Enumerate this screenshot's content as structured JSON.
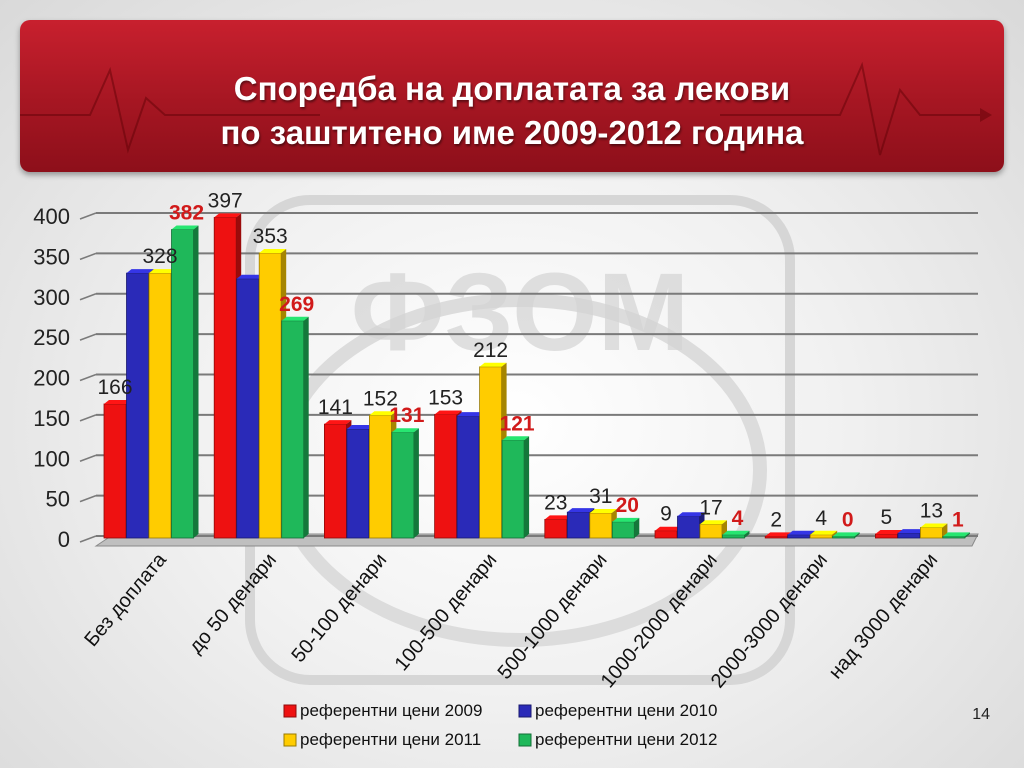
{
  "slide": {
    "title_line1": "Споредба на доплатата за лекови",
    "title_line2": "по заштитено име 2009-2012 година",
    "watermark": "ФЗОМ",
    "page_number": "14"
  },
  "chart_data": {
    "type": "bar",
    "categories": [
      "Без доплата",
      "до 50  денари",
      "50-100  денари",
      "100-500  денари",
      "500-1000  денари",
      "1000-2000  денари",
      "2000-3000 денари",
      "над 3000 денари"
    ],
    "series": [
      {
        "name": "референтни цени 2009",
        "color": "#ee1111",
        "label_color": "#222222",
        "values": [
          166,
          397,
          141,
          153,
          23,
          9,
          2,
          5
        ]
      },
      {
        "name": "референтни цени 2010",
        "color": "#2a2ab8",
        "label_color": "#222222",
        "values": [
          328,
          321,
          135,
          151,
          32,
          27,
          4,
          6
        ]
      },
      {
        "name": "референтни цени 2011",
        "color": "#ffcc00",
        "label_color": "#222222",
        "values": [
          328,
          353,
          152,
          212,
          31,
          17,
          4,
          13
        ]
      },
      {
        "name": "референтни цени 2012",
        "color": "#1fb85a",
        "label_color": "#d11a1a",
        "values": [
          382,
          269,
          131,
          121,
          20,
          4,
          0,
          1
        ]
      }
    ],
    "data_labels": [
      {
        "category": 0,
        "series": 0,
        "text": "166",
        "color": "#222222",
        "bold": false
      },
      {
        "category": 0,
        "series": 2,
        "text": "328",
        "color": "#222222",
        "bold": false
      },
      {
        "category": 0,
        "series": 3,
        "text": "382",
        "color": "#d11a1a",
        "bold": true
      },
      {
        "category": 1,
        "series": 0,
        "text": "397",
        "color": "#222222",
        "bold": false
      },
      {
        "category": 1,
        "series": 2,
        "text": "353",
        "color": "#222222",
        "bold": false
      },
      {
        "category": 1,
        "series": 3,
        "text": "269",
        "color": "#d11a1a",
        "bold": true
      },
      {
        "category": 2,
        "series": 0,
        "text": "141",
        "color": "#222222",
        "bold": false
      },
      {
        "category": 2,
        "series": 2,
        "text": "152",
        "color": "#222222",
        "bold": false
      },
      {
        "category": 2,
        "series": 3,
        "text": "131",
        "color": "#d11a1a",
        "bold": true
      },
      {
        "category": 3,
        "series": 0,
        "text": "153",
        "color": "#222222",
        "bold": false
      },
      {
        "category": 3,
        "series": 2,
        "text": "212",
        "color": "#222222",
        "bold": false
      },
      {
        "category": 3,
        "series": 3,
        "text": "121",
        "color": "#d11a1a",
        "bold": true
      },
      {
        "category": 4,
        "series": 0,
        "text": "23",
        "color": "#222222",
        "bold": false
      },
      {
        "category": 4,
        "series": 2,
        "text": "31",
        "color": "#222222",
        "bold": false
      },
      {
        "category": 4,
        "series": 3,
        "text": "20",
        "color": "#d11a1a",
        "bold": true
      },
      {
        "category": 5,
        "series": 0,
        "text": "9",
        "color": "#222222",
        "bold": false
      },
      {
        "category": 5,
        "series": 2,
        "text": "17",
        "color": "#222222",
        "bold": false
      },
      {
        "category": 5,
        "series": 3,
        "text": "4",
        "color": "#d11a1a",
        "bold": true
      },
      {
        "category": 6,
        "series": 0,
        "text": "2",
        "color": "#222222",
        "bold": false
      },
      {
        "category": 6,
        "series": 2,
        "text": "4",
        "color": "#222222",
        "bold": false
      },
      {
        "category": 6,
        "series": 3,
        "text": "0",
        "color": "#d11a1a",
        "bold": true
      },
      {
        "category": 7,
        "series": 0,
        "text": "5",
        "color": "#222222",
        "bold": false
      },
      {
        "category": 7,
        "series": 2,
        "text": "13",
        "color": "#222222",
        "bold": false
      },
      {
        "category": 7,
        "series": 3,
        "text": "1",
        "color": "#d11a1a",
        "bold": true
      }
    ],
    "yticks": [
      0,
      50,
      100,
      150,
      200,
      250,
      300,
      350,
      400
    ],
    "ylim": [
      0,
      400
    ],
    "grid": true,
    "legend_position": "bottom",
    "title": "",
    "xlabel": "",
    "ylabel": ""
  }
}
